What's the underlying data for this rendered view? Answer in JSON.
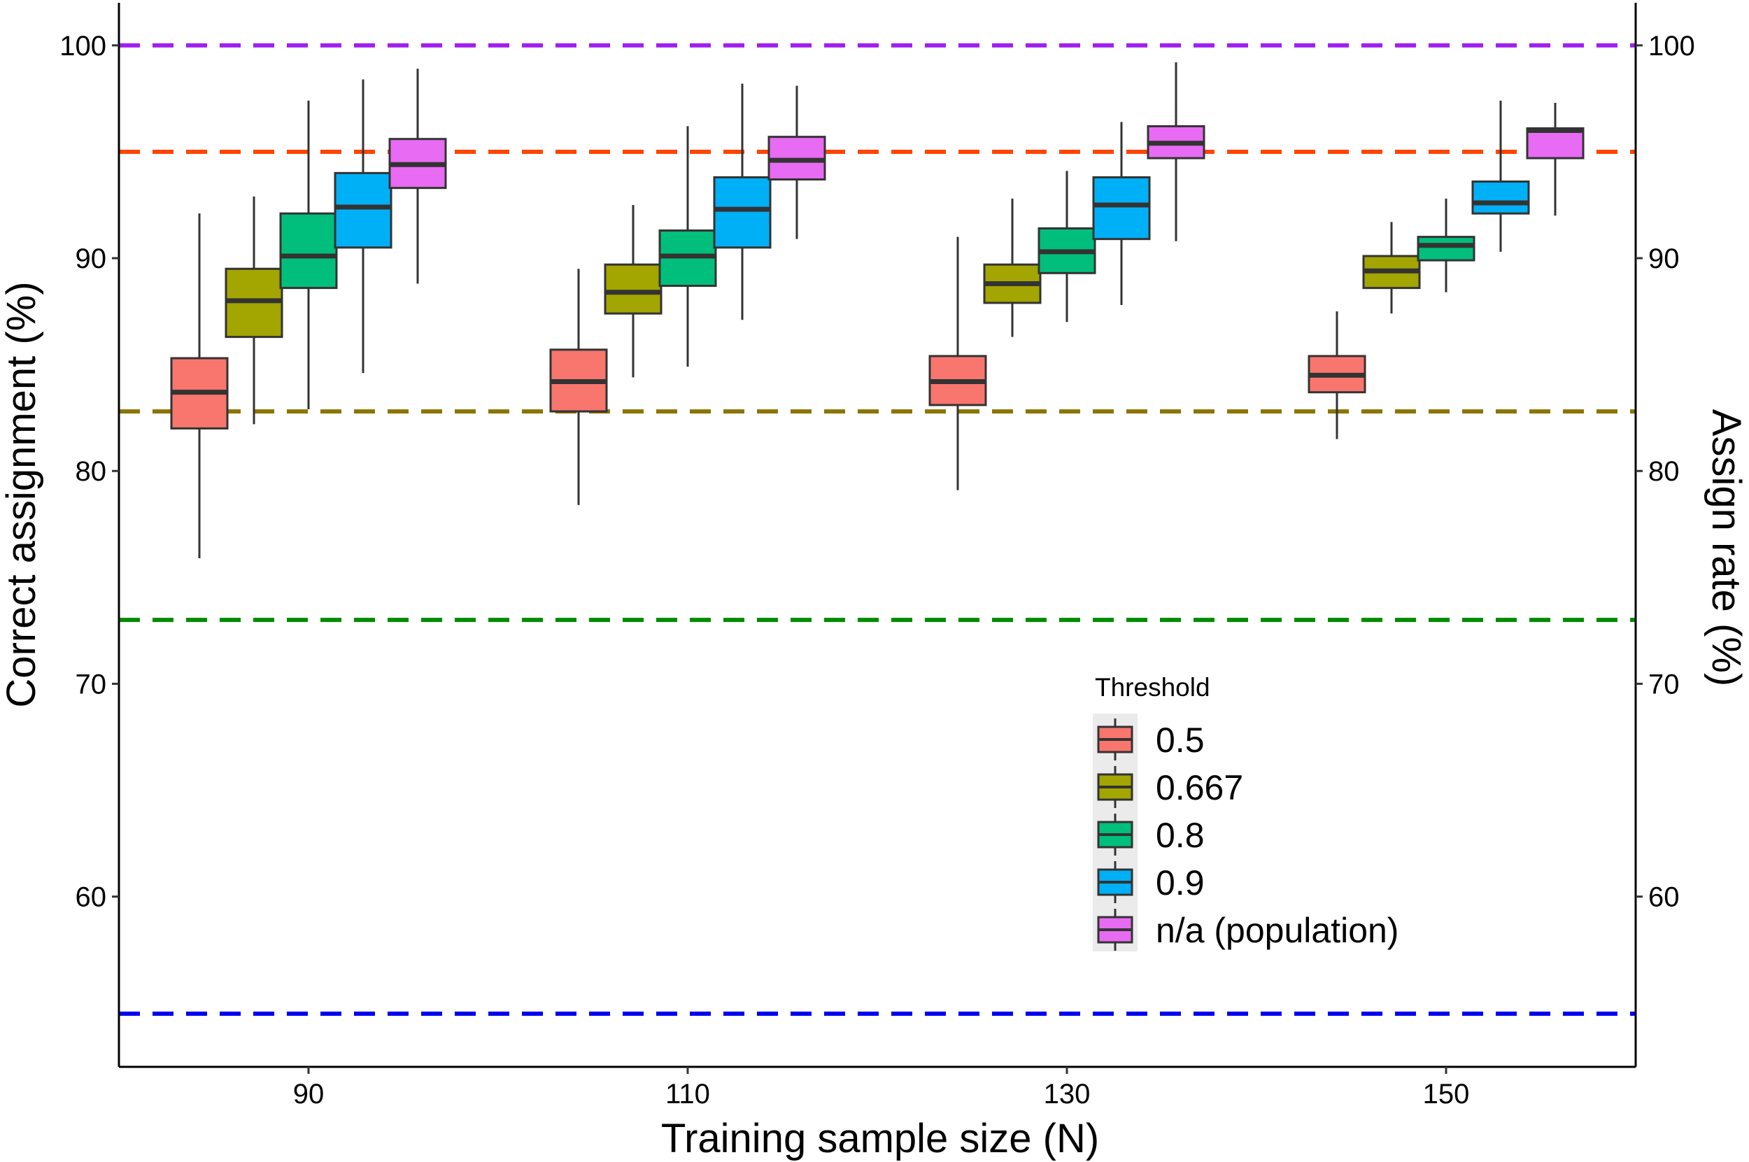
{
  "chart_data": {
    "type": "boxplot",
    "xlabel": "Training sample size (N)",
    "ylabel_left": "Correct assignment (%)",
    "ylabel_right": "Assign rate (%)",
    "ylim": [
      52,
      102
    ],
    "xlim": [
      80,
      160
    ],
    "x_ticks": [
      90,
      110,
      130,
      150
    ],
    "y_ticks": [
      60,
      70,
      80,
      90,
      100
    ],
    "legend": {
      "title": "Threshold",
      "position": "bottom-right inside",
      "entries": [
        {
          "label": "0.5",
          "color": "#F8766D"
        },
        {
          "label": "0.667",
          "color": "#A3A500"
        },
        {
          "label": "0.8",
          "color": "#00BF7D"
        },
        {
          "label": "0.9",
          "color": "#00B0F6"
        },
        {
          "label": "n/a (population)",
          "color": "#E76BF3"
        }
      ]
    },
    "reference_lines": [
      {
        "value": 100,
        "color": "#A020F0"
      },
      {
        "value": 95,
        "color": "#FF4500"
      },
      {
        "value": 82.8,
        "color": "#8B7500"
      },
      {
        "value": 73,
        "color": "#008B00"
      },
      {
        "value": 54.5,
        "color": "#0000EE"
      }
    ],
    "series": [
      {
        "name": "0.5",
        "color": "#F8766D",
        "boxes": [
          {
            "x": 90,
            "min": 75.9,
            "q1": 82.0,
            "median": 83.7,
            "q3": 85.3,
            "max": 92.1
          },
          {
            "x": 110,
            "min": 78.4,
            "q1": 82.8,
            "median": 84.2,
            "q3": 85.7,
            "max": 89.5
          },
          {
            "x": 130,
            "min": 79.1,
            "q1": 83.1,
            "median": 84.2,
            "q3": 85.4,
            "max": 91.0
          },
          {
            "x": 150,
            "min": 81.5,
            "q1": 83.7,
            "median": 84.5,
            "q3": 85.4,
            "max": 87.5
          }
        ]
      },
      {
        "name": "0.667",
        "color": "#A3A500",
        "boxes": [
          {
            "x": 90,
            "min": 82.2,
            "q1": 86.3,
            "median": 88.0,
            "q3": 89.5,
            "max": 92.9
          },
          {
            "x": 110,
            "min": 84.4,
            "q1": 87.4,
            "median": 88.4,
            "q3": 89.7,
            "max": 92.5
          },
          {
            "x": 130,
            "min": 86.3,
            "q1": 87.9,
            "median": 88.8,
            "q3": 89.7,
            "max": 92.8
          },
          {
            "x": 150,
            "min": 87.4,
            "q1": 88.6,
            "median": 89.4,
            "q3": 90.1,
            "max": 91.7
          }
        ]
      },
      {
        "name": "0.8",
        "color": "#00BF7D",
        "boxes": [
          {
            "x": 90,
            "min": 82.9,
            "q1": 88.6,
            "median": 90.1,
            "q3": 92.1,
            "max": 97.4
          },
          {
            "x": 110,
            "min": 84.9,
            "q1": 88.7,
            "median": 90.1,
            "q3": 91.3,
            "max": 96.2
          },
          {
            "x": 130,
            "min": 87.0,
            "q1": 89.3,
            "median": 90.3,
            "q3": 91.4,
            "max": 94.1
          },
          {
            "x": 150,
            "min": 88.4,
            "q1": 89.9,
            "median": 90.6,
            "q3": 91.0,
            "max": 92.8
          }
        ]
      },
      {
        "name": "0.9",
        "color": "#00B0F6",
        "boxes": [
          {
            "x": 90,
            "min": 84.6,
            "q1": 90.5,
            "median": 92.4,
            "q3": 94.0,
            "max": 98.4
          },
          {
            "x": 110,
            "min": 87.1,
            "q1": 90.5,
            "median": 92.3,
            "q3": 93.8,
            "max": 98.2
          },
          {
            "x": 130,
            "min": 87.8,
            "q1": 90.9,
            "median": 92.5,
            "q3": 93.8,
            "max": 96.4
          },
          {
            "x": 150,
            "min": 90.3,
            "q1": 92.1,
            "median": 92.6,
            "q3": 93.6,
            "max": 97.4
          }
        ]
      },
      {
        "name": "n/a (population)",
        "color": "#E76BF3",
        "boxes": [
          {
            "x": 90,
            "min": 88.8,
            "q1": 93.3,
            "median": 94.4,
            "q3": 95.6,
            "max": 98.9
          },
          {
            "x": 110,
            "min": 90.9,
            "q1": 93.7,
            "median": 94.6,
            "q3": 95.7,
            "max": 98.1
          },
          {
            "x": 130,
            "min": 90.8,
            "q1": 94.7,
            "median": 95.4,
            "q3": 96.2,
            "max": 99.2
          },
          {
            "x": 150,
            "min": 92.0,
            "q1": 94.7,
            "median": 96.0,
            "q3": 96.1,
            "max": 97.3
          }
        ]
      }
    ]
  }
}
